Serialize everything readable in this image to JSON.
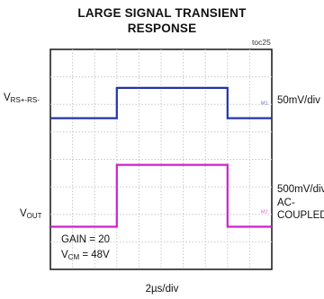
{
  "chart_data": {
    "type": "line",
    "title_line1": "LARGE SIGNAL TRANSIENT",
    "title_line2": "RESPONSE",
    "tag": "toc25",
    "xlabel": "2µs/div",
    "xlim": [
      0,
      10
    ],
    "ylim": [
      0,
      8
    ],
    "grid": true,
    "annotation_gain": "GAIN = 20",
    "annotation_vcm_prefix": "V",
    "annotation_vcm_sub": "CM",
    "annotation_vcm_suffix": " = 48V",
    "series": [
      {
        "label_main": "V",
        "label_sub": "RS+-RS-",
        "scale": "50mV/div",
        "marker": "M1",
        "color": "#2233aa",
        "x": [
          0,
          3,
          3,
          8,
          8,
          10
        ],
        "y": [
          5.5,
          5.5,
          6.6,
          6.6,
          5.5,
          5.5
        ]
      },
      {
        "label_main": "V",
        "label_sub": "OUT",
        "scale_line1": "500mV/div",
        "scale_line2": "AC-",
        "scale_line3": "COUPLED",
        "marker": "M2",
        "color": "#cc22cc",
        "x": [
          0,
          3,
          3,
          8,
          8,
          10
        ],
        "y": [
          1.55,
          1.55,
          3.8,
          3.8,
          1.55,
          1.55
        ]
      }
    ]
  }
}
